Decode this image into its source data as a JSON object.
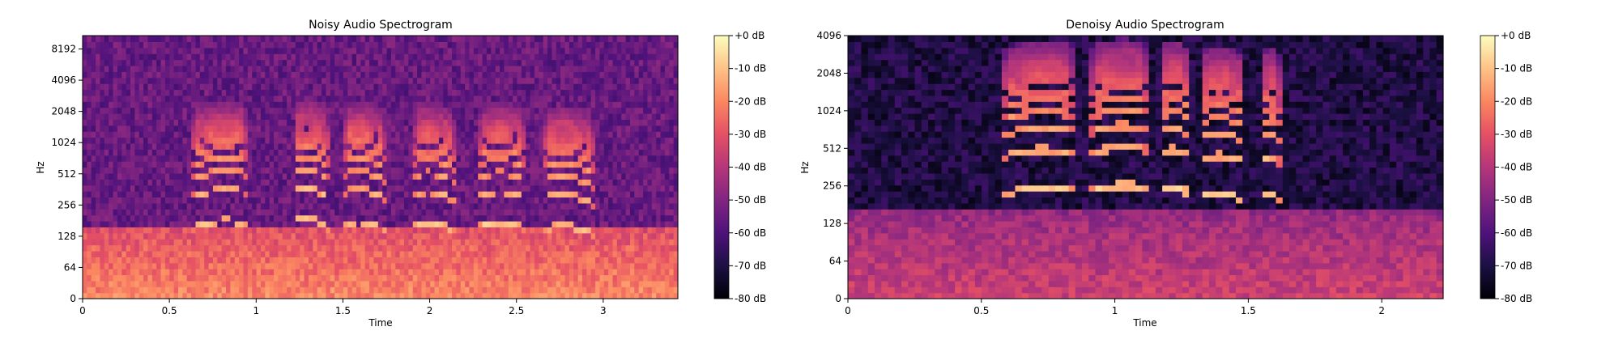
{
  "colormap": "magma",
  "chart_data": [
    {
      "type": "heatmap",
      "title": "Noisy Audio Spectrogram",
      "xlabel": "Time",
      "ylabel": "Hz",
      "y_scale": "symlog",
      "x_ticks": [
        "0",
        "0.5",
        "1",
        "1.5",
        "2",
        "2.5",
        "3"
      ],
      "x_tick_values": [
        0,
        0.5,
        1,
        1.5,
        2,
        2.5,
        3
      ],
      "xlim": [
        0,
        3.43
      ],
      "y_ticks": [
        "0",
        "64",
        "128",
        "256",
        "512",
        "1024",
        "2048",
        "4096",
        "8192"
      ],
      "y_tick_values": [
        0,
        64,
        128,
        256,
        512,
        1024,
        2048,
        4096,
        8192
      ],
      "ylim": [
        0,
        11025
      ],
      "colorbar_labels": [
        "+0 dB",
        "-10 dB",
        "-20 dB",
        "-30 dB",
        "-40 dB",
        "-50 dB",
        "-60 dB",
        "-70 dB",
        "-80 dB"
      ],
      "colorbar_values": [
        0,
        -10,
        -20,
        -30,
        -40,
        -50,
        -60,
        -70,
        -80
      ],
      "vmin": -80,
      "vmax": 0,
      "noise_floor_db": -55,
      "low_freq_energy_db": -20,
      "voiced_segments": [
        {
          "start": 0.62,
          "end": 0.95,
          "f0": [
            150,
            170
          ]
        },
        {
          "start": 1.22,
          "end": 1.42,
          "f0": [
            180,
            150
          ]
        },
        {
          "start": 1.5,
          "end": 1.75,
          "f0": [
            170,
            145
          ]
        },
        {
          "start": 1.9,
          "end": 2.15,
          "f0": [
            165,
            140
          ]
        },
        {
          "start": 2.28,
          "end": 2.55,
          "f0": [
            160,
            150
          ]
        },
        {
          "start": 2.65,
          "end": 2.95,
          "f0": [
            150,
            130
          ]
        }
      ]
    },
    {
      "type": "heatmap",
      "title": "Denoisy Audio Spectrogram",
      "xlabel": "Time",
      "ylabel": "Hz",
      "y_scale": "symlog",
      "x_ticks": [
        "0",
        "0.5",
        "1",
        "1.5",
        "2"
      ],
      "x_tick_values": [
        0,
        0.5,
        1,
        1.5,
        2
      ],
      "xlim": [
        0,
        2.23
      ],
      "y_ticks": [
        "0",
        "64",
        "128",
        "256",
        "512",
        "1024",
        "2048",
        "4096"
      ],
      "y_tick_values": [
        0,
        64,
        128,
        256,
        512,
        1024,
        2048,
        4096
      ],
      "ylim": [
        0,
        4096
      ],
      "colorbar_labels": [
        "+0 dB",
        "-10 dB",
        "-20 dB",
        "-30 dB",
        "-40 dB",
        "-50 dB",
        "-60 dB",
        "-70 dB",
        "-80 dB"
      ],
      "colorbar_values": [
        0,
        -10,
        -20,
        -30,
        -40,
        -50,
        -60,
        -70,
        -80
      ],
      "vmin": -80,
      "vmax": 0,
      "noise_floor_db": -70,
      "low_freq_energy_db": -35,
      "voiced_segments": [
        {
          "start": 0.58,
          "end": 0.84,
          "f0": [
            220,
            240
          ]
        },
        {
          "start": 0.9,
          "end": 1.12,
          "f0": [
            230,
            250
          ]
        },
        {
          "start": 1.18,
          "end": 1.28,
          "f0": [
            240,
            220
          ]
        },
        {
          "start": 1.32,
          "end": 1.48,
          "f0": [
            210,
            200
          ]
        },
        {
          "start": 1.55,
          "end": 1.62,
          "f0": [
            200,
            200
          ]
        }
      ]
    }
  ]
}
